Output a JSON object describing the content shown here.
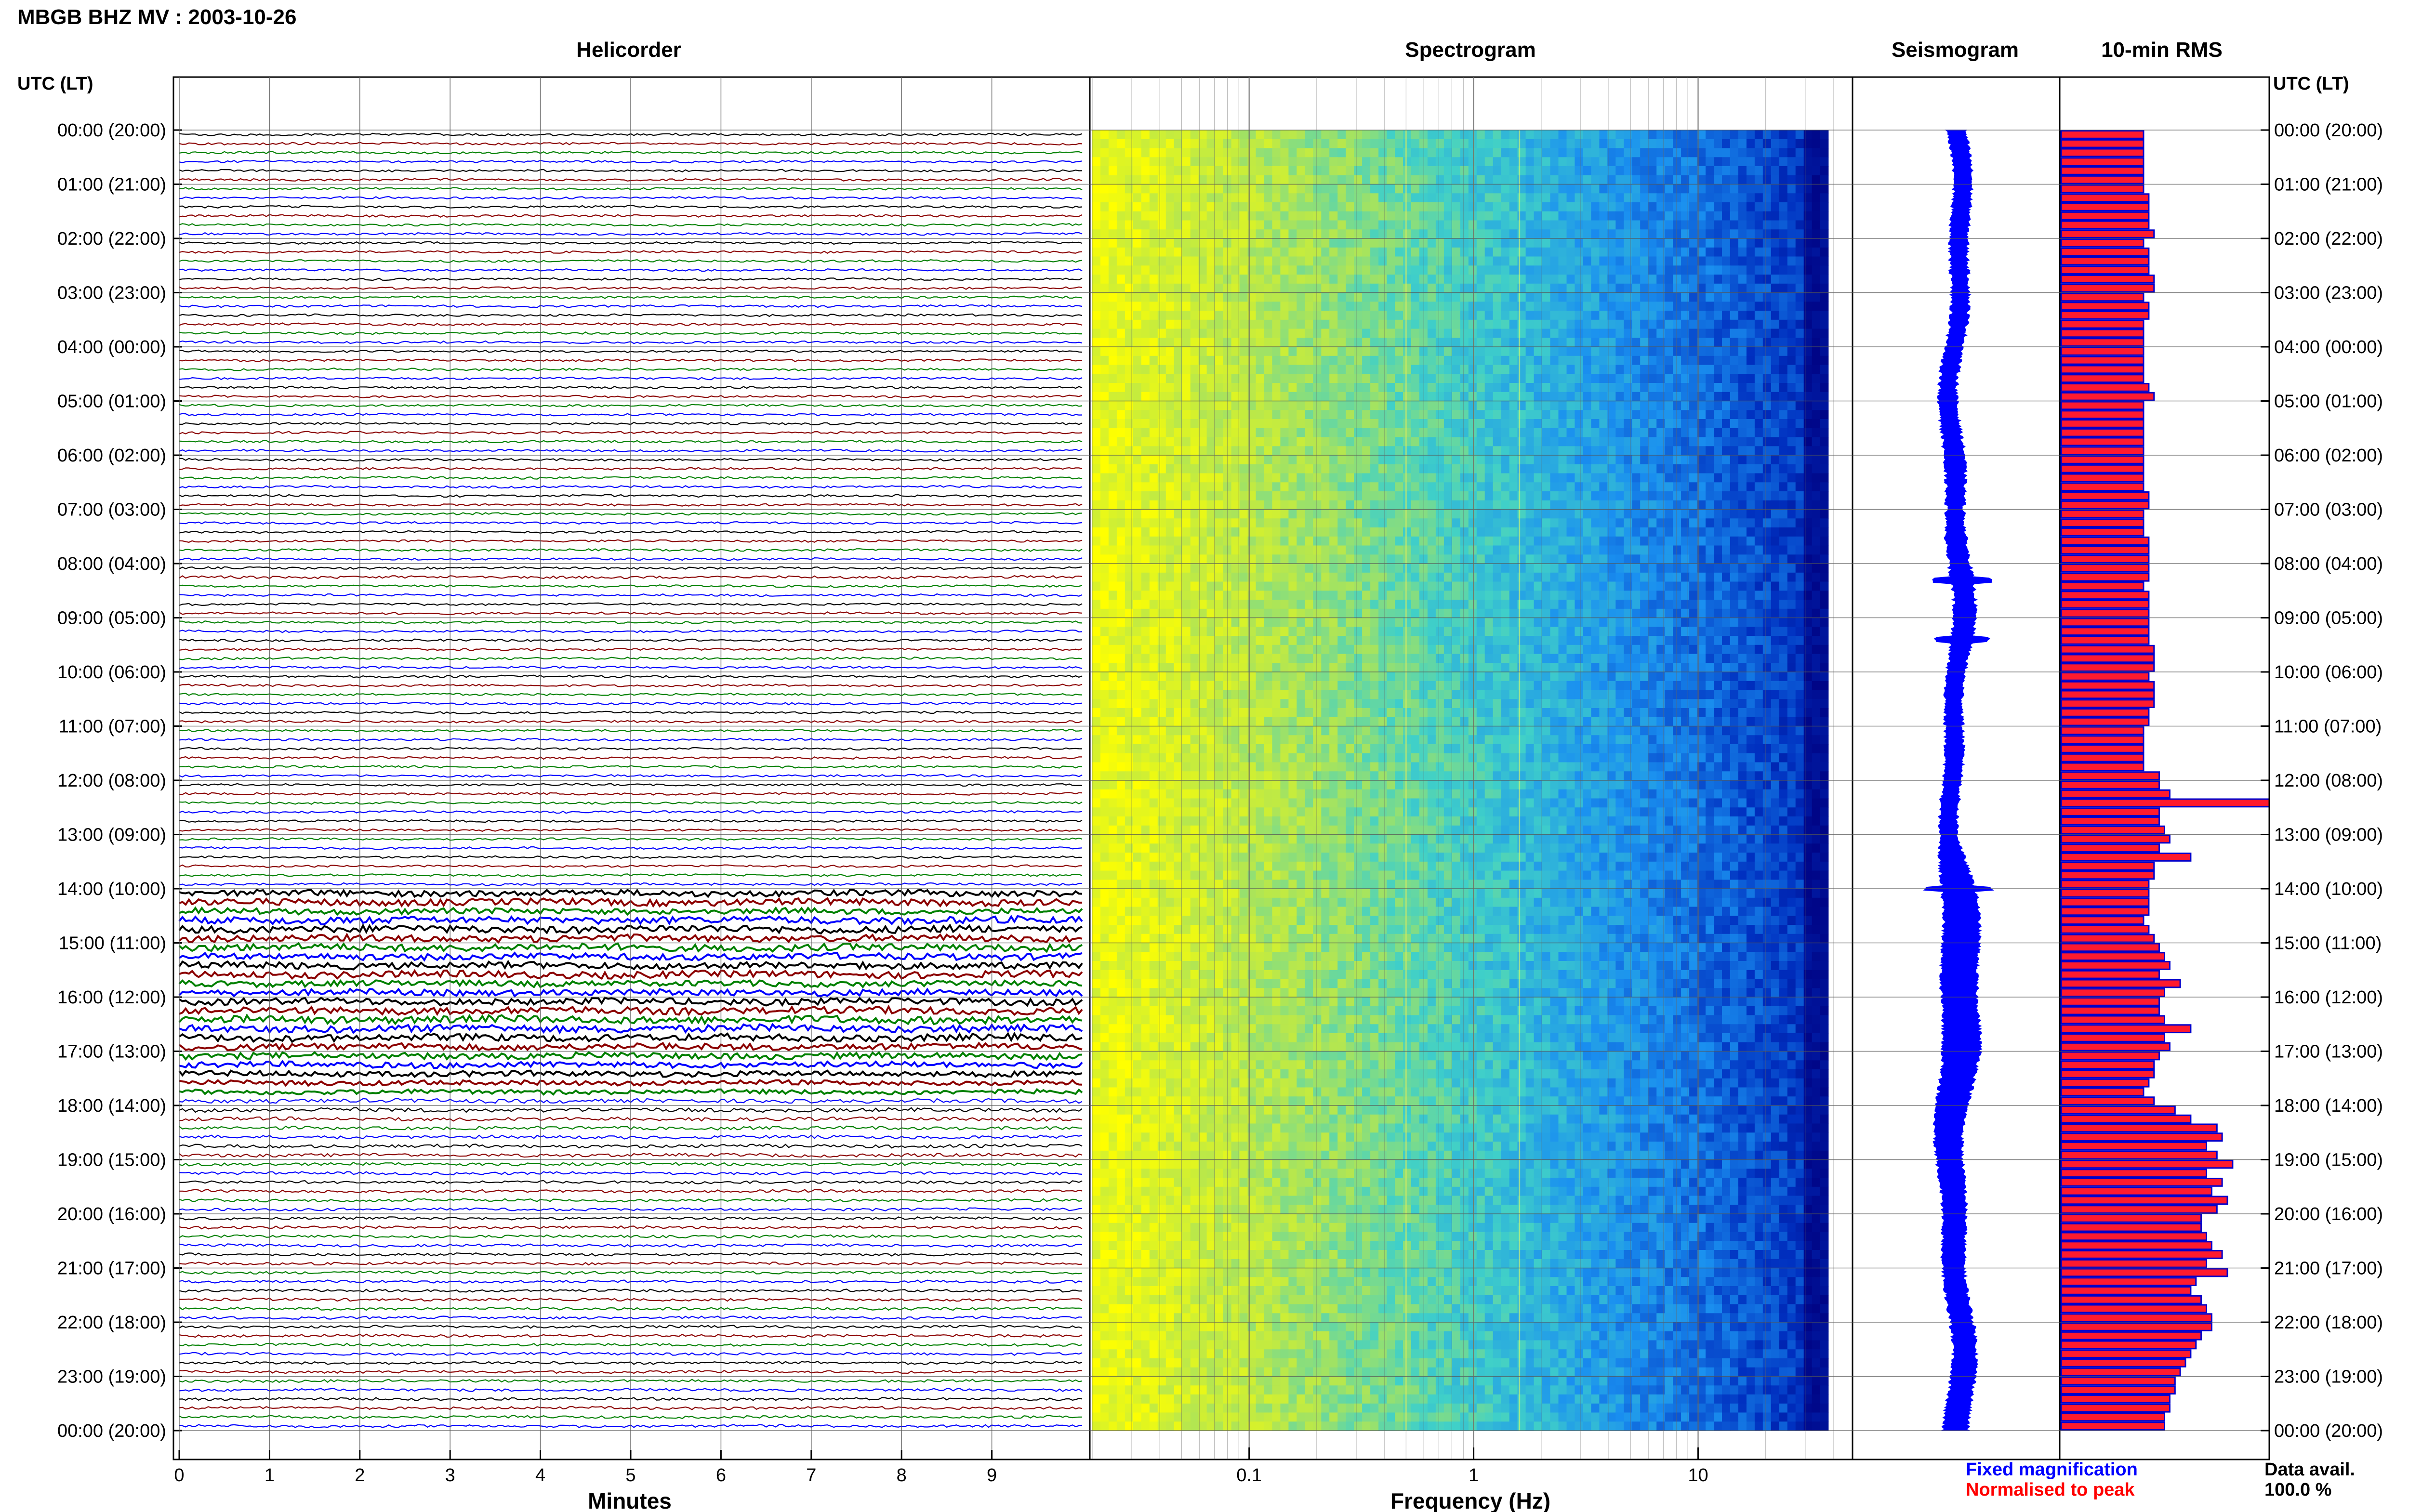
{
  "title": "MBGB BHZ MV : 2003-10-26",
  "panels": {
    "helicorder": "Helicorder",
    "spectrogram": "Spectrogram",
    "seismogram": "Seismogram",
    "rms": "10-min RMS"
  },
  "axis_corner_label": "UTC (LT)",
  "time_labels": [
    "00:00 (20:00)",
    "01:00 (21:00)",
    "02:00 (22:00)",
    "03:00 (23:00)",
    "04:00 (00:00)",
    "05:00 (01:00)",
    "06:00 (02:00)",
    "07:00 (03:00)",
    "08:00 (04:00)",
    "09:00 (05:00)",
    "10:00 (06:00)",
    "11:00 (07:00)",
    "12:00 (08:00)",
    "13:00 (09:00)",
    "14:00 (10:00)",
    "15:00 (11:00)",
    "16:00 (12:00)",
    "17:00 (13:00)",
    "18:00 (14:00)",
    "19:00 (15:00)",
    "20:00 (16:00)",
    "21:00 (17:00)",
    "22:00 (18:00)",
    "23:00 (19:00)",
    "00:00 (20:00)"
  ],
  "minutes_ticks": [
    "0",
    "1",
    "2",
    "3",
    "4",
    "5",
    "6",
    "7",
    "8",
    "9"
  ],
  "minutes_label": "Minutes",
  "freq_ticks": [
    "0.1",
    "1",
    "10"
  ],
  "freq_label": "Frequency (Hz)",
  "legend": {
    "fixed": "Fixed magnification",
    "normalised": "Normalised to peak",
    "fixed_color": "#0000ff",
    "normalised_color": "#ff0000"
  },
  "data_avail": {
    "label": "Data avail.",
    "value": "100.0 %"
  },
  "colors": {
    "trace_cycle": [
      "#000000",
      "#8b0000",
      "#008000",
      "#0000ff"
    ],
    "rms_fill": "#ff1a2e",
    "rms_edge": "#0000cc",
    "seismogram": "#0000ff"
  },
  "chart_data": [
    {
      "type": "line",
      "title": "Helicorder",
      "xlabel": "Minutes",
      "xlim": [
        0,
        10
      ],
      "rows": 144,
      "row_minutes": 10,
      "traces_per_hour": 6,
      "amplitude_per_row": [
        1,
        1,
        1,
        1,
        1,
        1,
        1,
        1,
        1,
        1,
        1,
        1,
        1,
        1,
        1,
        1,
        1,
        1,
        1,
        1,
        1,
        1,
        1,
        1,
        1,
        1,
        1,
        1,
        1,
        1,
        1,
        1,
        1,
        1,
        1,
        1,
        1,
        1,
        1,
        1,
        1,
        1,
        1,
        1,
        1,
        1,
        1,
        1,
        1,
        1.2,
        1,
        1,
        1,
        1,
        1,
        1,
        1,
        1,
        1,
        1,
        1,
        1,
        1,
        1,
        1,
        1,
        1,
        1,
        1,
        1,
        1,
        1,
        1,
        1,
        1,
        1,
        1,
        1,
        1,
        1,
        1,
        1,
        1,
        1,
        2.8,
        3.0,
        2.6,
        3.2,
        3.3,
        3.0,
        3.2,
        2.9,
        3.0,
        3.1,
        2.7,
        2.8,
        3.0,
        3.2,
        3.4,
        3.3,
        3.1,
        2.9,
        2.8,
        2.6,
        2.5,
        2.2,
        2.0,
        1.8,
        1.8,
        1.6,
        1.5,
        1.5,
        1.5,
        1.5,
        1.4,
        1.3,
        1.3,
        1.3,
        1.3,
        1.2,
        1.2,
        1.2,
        1.2,
        1.2,
        1.2,
        1.2,
        1.2,
        1.2,
        1.2,
        1.2,
        1.2,
        1.2,
        1.2,
        1.2,
        1.2,
        1.2,
        1.2,
        1.2,
        1.2,
        1.2,
        1.2,
        1.2,
        1.2,
        1.2
      ]
    },
    {
      "type": "heatmap",
      "title": "Spectrogram",
      "xlabel": "Frequency (Hz)",
      "x_scale": "log",
      "xlim": [
        0.02,
        40
      ],
      "rows": 144,
      "colormap": [
        "#ffff00",
        "#b4e650",
        "#40d0c8",
        "#1a90f0",
        "#0030c0",
        "#000080"
      ]
    },
    {
      "type": "line",
      "title": "Seismogram",
      "hours": 24,
      "events_hours": [
        8.3,
        9.4,
        14.0
      ],
      "amplitude_envelope_by_hour": [
        1,
        1,
        1,
        1,
        1,
        1,
        1.2,
        1,
        1.3,
        1.3,
        1,
        1,
        1,
        1,
        2.2,
        2.4,
        2.3,
        2.5,
        2.0,
        1.6,
        1.4,
        1.3,
        1.4,
        1.5,
        1.5
      ]
    },
    {
      "type": "bar",
      "title": "10-min RMS",
      "orientation": "horizontal",
      "rows": 144,
      "values": [
        16,
        16,
        16,
        16,
        16,
        16,
        16,
        17,
        17,
        17,
        17,
        18,
        16,
        17,
        17,
        17,
        18,
        18,
        16,
        17,
        17,
        16,
        16,
        16,
        16,
        16,
        16,
        16,
        17,
        18,
        16,
        16,
        16,
        16,
        16,
        16,
        16,
        16,
        16,
        16,
        17,
        17,
        16,
        16,
        16,
        17,
        17,
        17,
        17,
        17,
        16,
        17,
        17,
        17,
        17,
        17,
        17,
        18,
        18,
        18,
        17,
        18,
        18,
        18,
        17,
        17,
        16,
        16,
        16,
        16,
        16,
        19,
        19,
        21,
        40,
        19,
        19,
        20,
        21,
        19,
        25,
        18,
        18,
        17,
        17,
        17,
        17,
        16,
        17,
        18,
        19,
        20,
        21,
        19,
        23,
        20,
        19,
        19,
        20,
        25,
        20,
        21,
        19,
        18,
        18,
        17,
        16,
        18,
        22,
        25,
        30,
        31,
        28,
        30,
        33,
        28,
        31,
        29,
        32,
        30,
        27,
        27,
        28,
        29,
        31,
        28,
        32,
        26,
        25,
        27,
        28,
        29,
        29,
        27,
        26,
        25,
        24,
        23,
        22,
        22,
        21,
        21,
        20,
        20
      ]
    }
  ]
}
